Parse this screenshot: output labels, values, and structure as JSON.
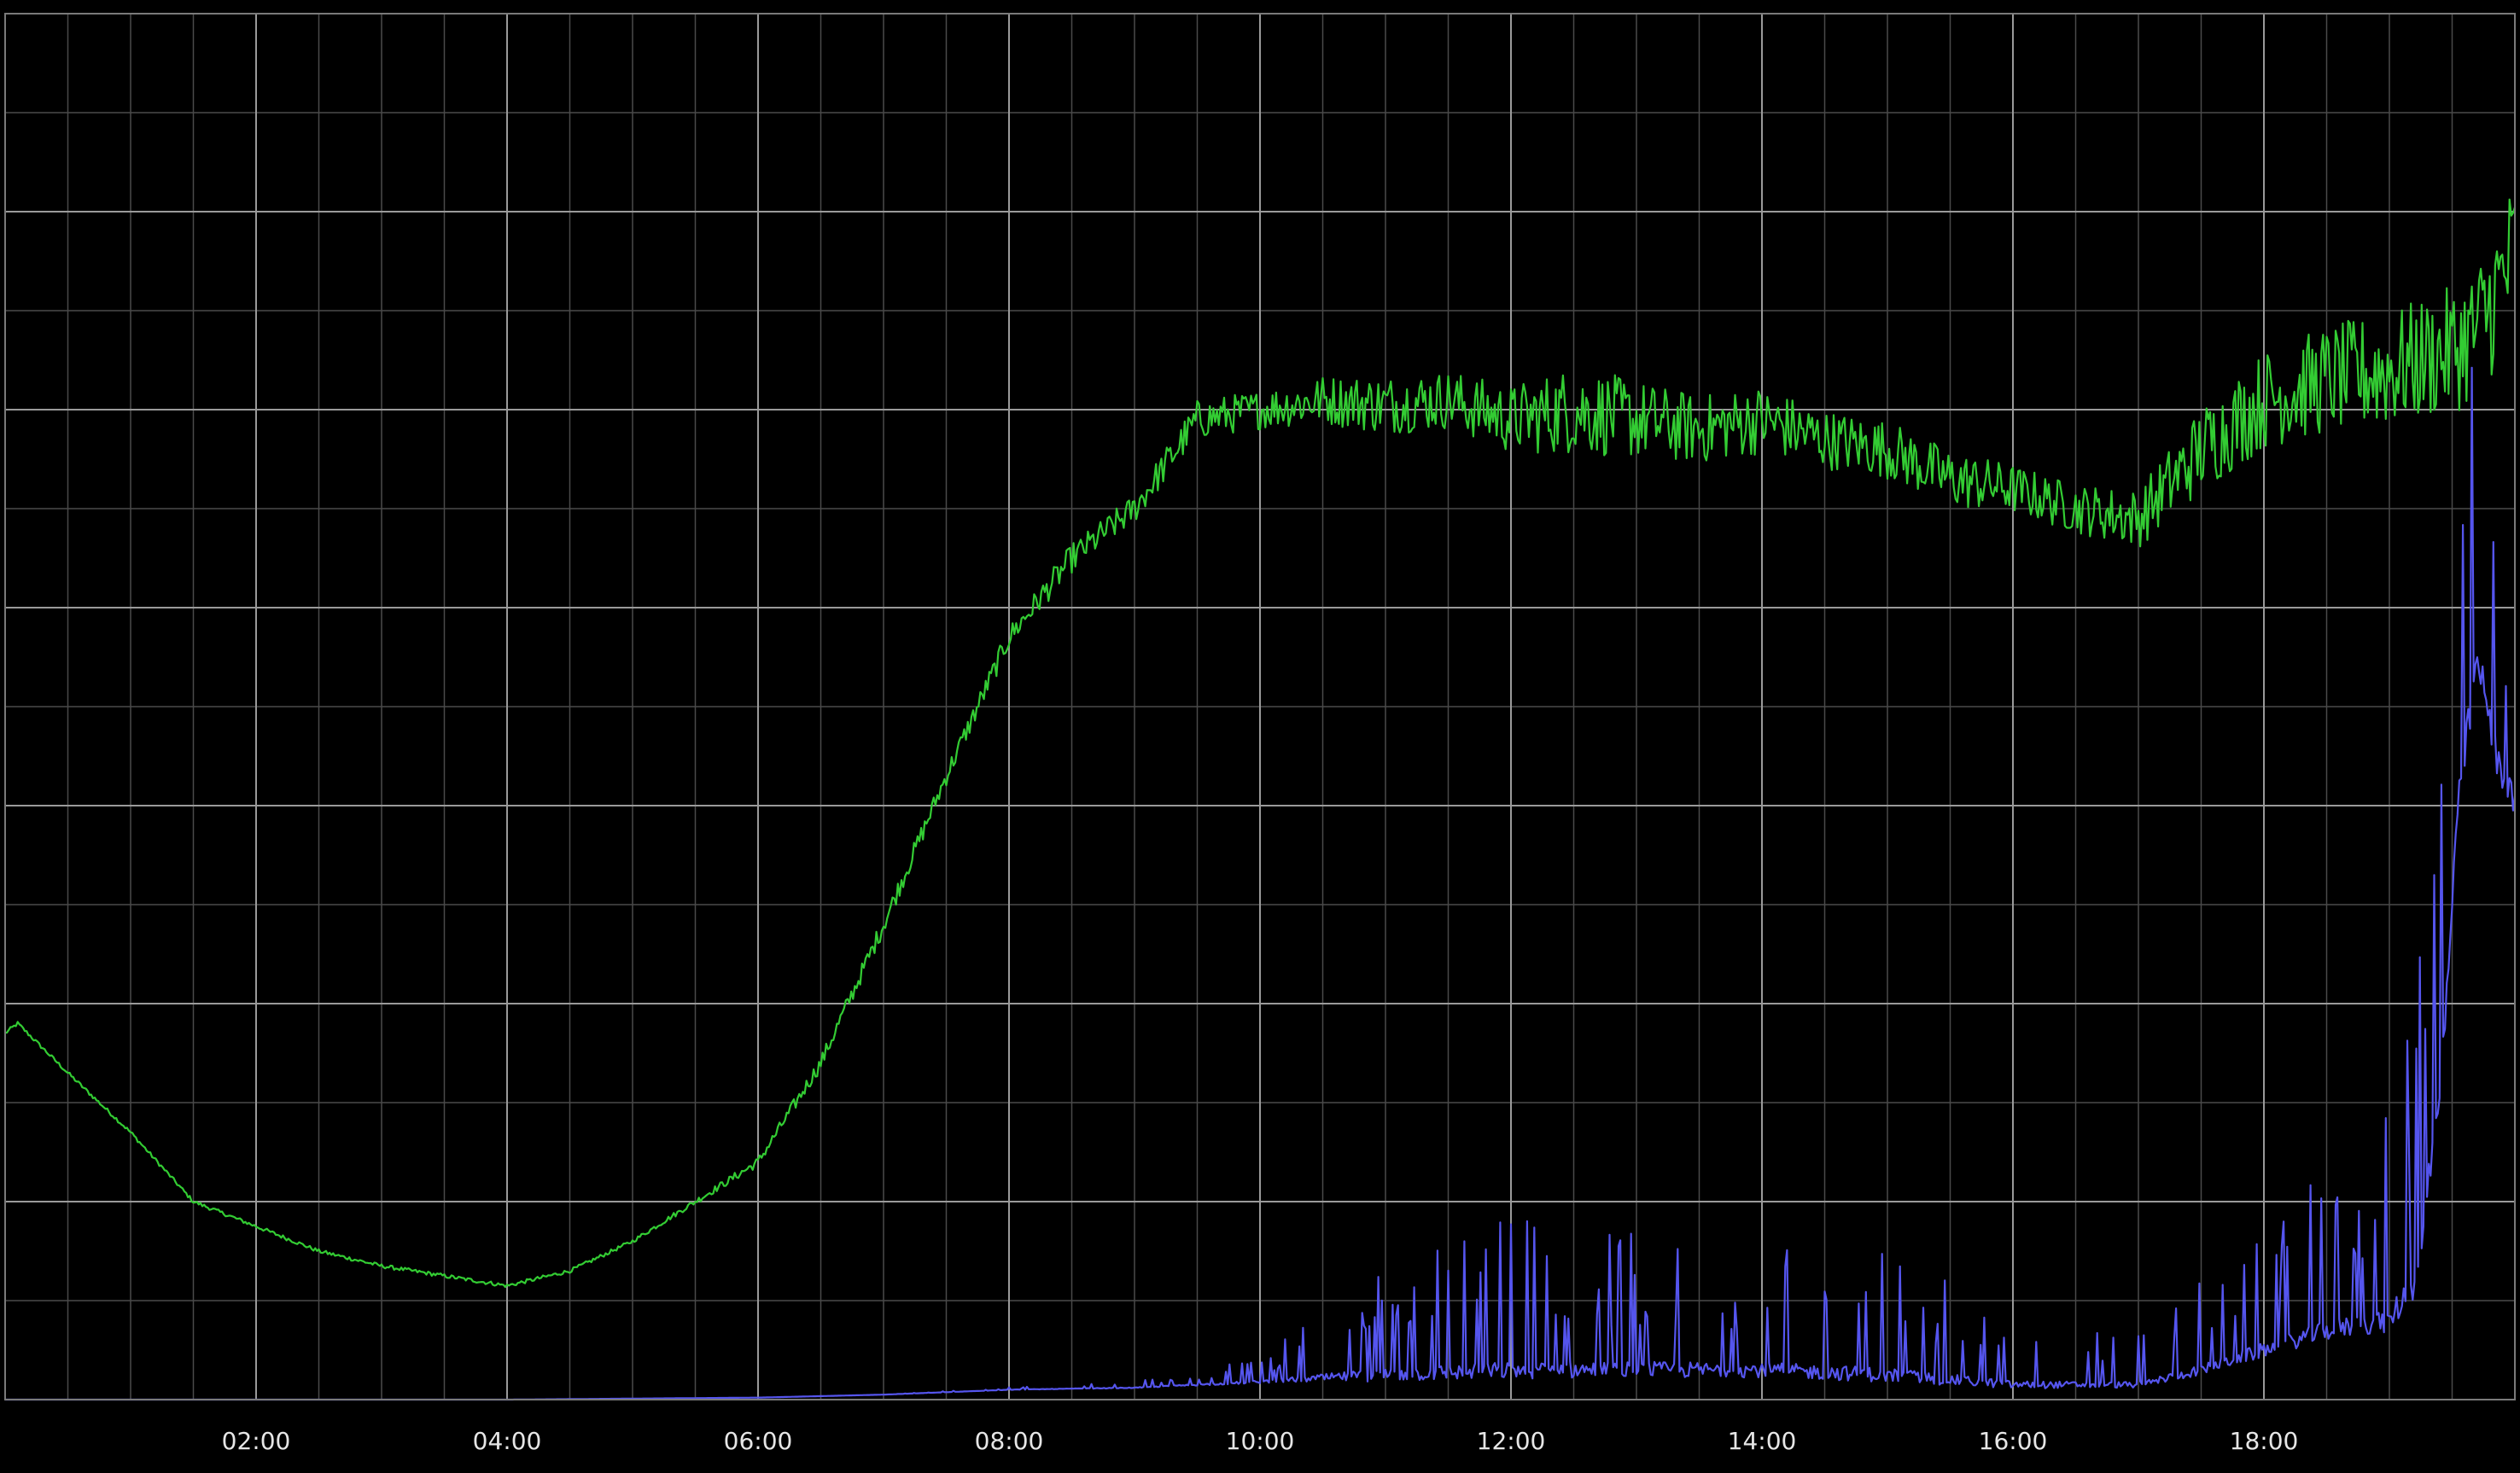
{
  "chart_data": {
    "type": "line",
    "grid": true,
    "background": "#000000",
    "grid_major_color": "#9a9a9a",
    "grid_minor_color": "#4a4a4a",
    "x_range_hours": [
      0,
      20.0
    ],
    "y_range": [
      0,
      14
    ],
    "x_ticks": [
      {
        "t": 2,
        "label": "02:00"
      },
      {
        "t": 4,
        "label": "04:00"
      },
      {
        "t": 6,
        "label": "06:00"
      },
      {
        "t": 8,
        "label": "08:00"
      },
      {
        "t": 10,
        "label": "10:00"
      },
      {
        "t": 12,
        "label": "12:00"
      },
      {
        "t": 14,
        "label": "14:00"
      },
      {
        "t": 16,
        "label": "16:00"
      },
      {
        "t": 18,
        "label": "18:00"
      }
    ],
    "series": [
      {
        "color": "#33cc33",
        "x": [
          0,
          0.1,
          0.5,
          1.0,
          1.5,
          2.0,
          2.5,
          3.0,
          3.5,
          4.0,
          4.5,
          5.0,
          5.5,
          6.0,
          6.5,
          7.0,
          7.5,
          8.0,
          8.5,
          9.0,
          9.5,
          10.0,
          10.5,
          11.0,
          11.5,
          12.0,
          12.5,
          13.0,
          13.5,
          14.0,
          14.5,
          15.0,
          15.5,
          16.0,
          16.5,
          17.0,
          17.5,
          18.0,
          18.5,
          19.0,
          19.5,
          19.7,
          19.9,
          20.0
        ],
        "y": [
          3.7,
          3.8,
          3.3,
          2.7,
          2.0,
          1.75,
          1.5,
          1.35,
          1.25,
          1.15,
          1.3,
          1.6,
          2.0,
          2.4,
          3.4,
          4.8,
          6.3,
          7.7,
          8.5,
          9.0,
          9.9,
          10.0,
          10.1,
          10.05,
          10.1,
          9.9,
          10.0,
          9.9,
          9.8,
          9.9,
          9.7,
          9.6,
          9.3,
          9.2,
          9.0,
          8.9,
          9.6,
          10.1,
          10.3,
          10.4,
          10.6,
          10.8,
          11.3,
          11.6
        ],
        "noise": [
          0.02,
          0.02,
          0.02,
          0.02,
          0.02,
          0.02,
          0.02,
          0.02,
          0.02,
          0.02,
          0.02,
          0.02,
          0.03,
          0.05,
          0.08,
          0.1,
          0.1,
          0.12,
          0.15,
          0.15,
          0.2,
          0.2,
          0.25,
          0.3,
          0.3,
          0.35,
          0.45,
          0.4,
          0.35,
          0.35,
          0.3,
          0.3,
          0.3,
          0.25,
          0.25,
          0.3,
          0.45,
          0.5,
          0.55,
          0.6,
          0.65,
          0.7,
          0.8,
          0.8
        ]
      },
      {
        "color": "#5555ee",
        "x": [
          0,
          2.0,
          4.0,
          6.0,
          7.0,
          8.0,
          9.0,
          9.5,
          10.0,
          10.5,
          11.0,
          12.0,
          13.0,
          14.0,
          15.0,
          16.0,
          17.0,
          17.5,
          18.0,
          18.5,
          19.0,
          19.2,
          19.4,
          19.55,
          19.7,
          19.85,
          20.0
        ],
        "y": [
          0.0,
          0.0,
          0.0,
          0.02,
          0.05,
          0.1,
          0.12,
          0.15,
          0.18,
          0.22,
          0.25,
          0.3,
          0.3,
          0.3,
          0.25,
          0.15,
          0.15,
          0.3,
          0.5,
          0.7,
          0.8,
          1.2,
          3.0,
          6.0,
          7.5,
          6.5,
          6.0
        ],
        "spike": [
          0,
          0,
          0,
          0,
          0,
          0.02,
          0.05,
          0.1,
          0.2,
          0.5,
          0.9,
          1.2,
          1.1,
          1.0,
          1.0,
          0.5,
          0.4,
          0.7,
          1.0,
          1.3,
          1.6,
          2.5,
          3.0,
          2.5,
          3.0,
          2.5,
          2.0
        ]
      }
    ]
  }
}
